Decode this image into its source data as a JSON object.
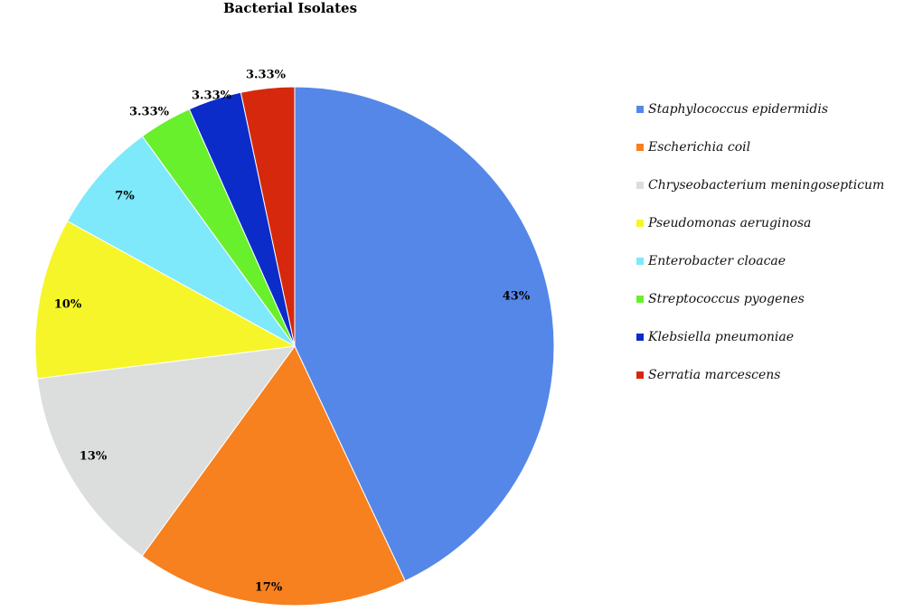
{
  "chart_data": {
    "type": "pie",
    "title": "Bacterial Isolates",
    "legend_position": "right",
    "slices": [
      {
        "label": "Staphylococcus epidermidis",
        "value": 43,
        "value_label": "43%",
        "color": "#5587e8"
      },
      {
        "label": "Escherichia coil",
        "value": 17,
        "value_label": "17%",
        "color": "#f7801f"
      },
      {
        "label": "Chryseobacterium meningosepticum",
        "value": 13,
        "value_label": "13%",
        "color": "#dcdedd"
      },
      {
        "label": "Pseudomonas aeruginosa",
        "value": 10,
        "value_label": "10%",
        "color": "#f5f52a"
      },
      {
        "label": "Enterobacter cloacae",
        "value": 7,
        "value_label": "7%",
        "color": "#7de9fa"
      },
      {
        "label": "Streptococcus pyogenes",
        "value": 3.33,
        "value_label": "3.33%",
        "color": "#68f02c"
      },
      {
        "label": "Klebsiella pneumoniae",
        "value": 3.33,
        "value_label": "3.33%",
        "color": "#0b2cc9"
      },
      {
        "label": "Serratia marcescens",
        "value": 3.33,
        "value_label": "3.33%",
        "color": "#d6280c"
      }
    ]
  }
}
